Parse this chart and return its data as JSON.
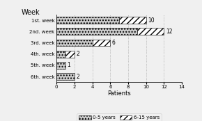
{
  "weeks": [
    "1st. week",
    "2nd. week",
    "3rd. week",
    "4th. week",
    "5th. week",
    "6th. week"
  ],
  "young": [
    7,
    9,
    4,
    1,
    1,
    2
  ],
  "older": [
    3,
    3,
    2,
    1,
    0,
    0
  ],
  "totals": [
    10,
    12,
    6,
    2,
    1,
    2
  ],
  "xlim": [
    0,
    14
  ],
  "xticks": [
    0,
    2,
    4,
    6,
    8,
    10,
    12,
    14
  ],
  "xlabel": "Patients",
  "title": "Week",
  "color_young": "#cccccc",
  "color_older": "#ffffff",
  "hatch_young": "....",
  "hatch_older": "////",
  "legend_young": "0-5 years",
  "legend_older": "6-15 years",
  "bg_color": "#f0f0f0"
}
